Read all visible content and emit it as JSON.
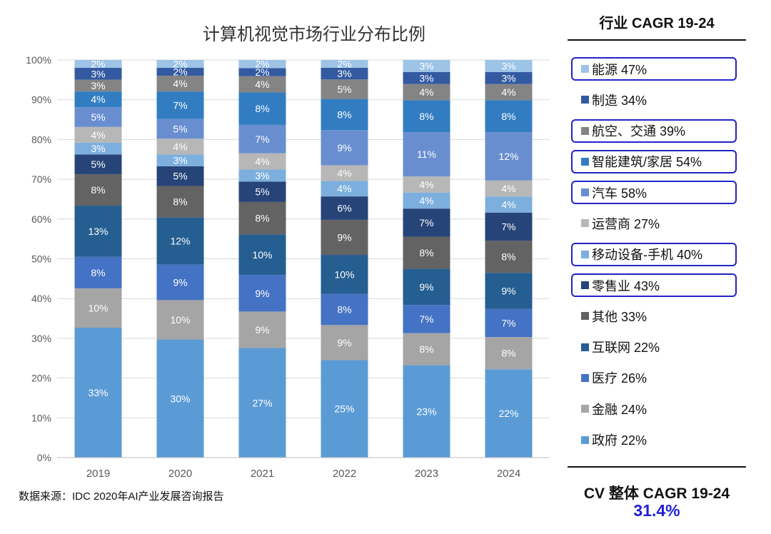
{
  "chart_data": {
    "type": "bar",
    "stacked": true,
    "title": "计算机视觉市场行业分布比例",
    "categories": [
      "2019",
      "2020",
      "2021",
      "2022",
      "2023",
      "2024"
    ],
    "ylim": [
      0,
      100
    ],
    "yticks": [
      "0%",
      "10%",
      "20%",
      "30%",
      "40%",
      "50%",
      "60%",
      "70%",
      "80%",
      "90%",
      "100%"
    ],
    "grid": true,
    "legend_position": "right",
    "series": [
      {
        "name": "政府",
        "color": "#5b9bd5",
        "values": [
          33,
          30,
          27,
          25,
          23,
          22
        ]
      },
      {
        "name": "金融",
        "color": "#a5a5a5",
        "values": [
          10,
          10,
          9,
          9,
          8,
          8
        ]
      },
      {
        "name": "医疗",
        "color": "#4472c4",
        "values": [
          8,
          9,
          9,
          8,
          7,
          7
        ]
      },
      {
        "name": "互联网",
        "color": "#255e91",
        "values": [
          13,
          12,
          10,
          10,
          9,
          9
        ]
      },
      {
        "name": "其他",
        "color": "#636363",
        "values": [
          8,
          8,
          8,
          9,
          8,
          8
        ]
      },
      {
        "name": "零售业",
        "color": "#264478",
        "values": [
          5,
          5,
          5,
          6,
          7,
          7
        ]
      },
      {
        "name": "移动设备-手机",
        "color": "#7cafdd",
        "values": [
          3,
          3,
          3,
          4,
          4,
          4
        ]
      },
      {
        "name": "运营商",
        "color": "#b7b7b7",
        "values": [
          4,
          4,
          4,
          4,
          4,
          4
        ]
      },
      {
        "name": "汽车",
        "color": "#698ed0",
        "values": [
          5,
          5,
          7,
          9,
          11,
          12
        ]
      },
      {
        "name": "智能建筑/家居",
        "color": "#327dc2",
        "values": [
          4,
          7,
          8,
          8,
          8,
          8
        ]
      },
      {
        "name": "航空、交通",
        "color": "#848484",
        "values": [
          3,
          4,
          4,
          5,
          4,
          4
        ]
      },
      {
        "name": "制造",
        "color": "#335aa1",
        "values": [
          3,
          2,
          2,
          3,
          3,
          3
        ]
      },
      {
        "name": "能源",
        "color": "#9dc3e6",
        "values": [
          2,
          2,
          2,
          2,
          3,
          3
        ]
      }
    ],
    "label_format": "{v}%"
  },
  "panel": {
    "header": "行业 CAGR 19-24",
    "legend": [
      {
        "label": "能源 47%",
        "color": "#9dc3e6",
        "highlighted": true
      },
      {
        "label": "制造 34%",
        "color": "#335aa1",
        "highlighted": false
      },
      {
        "label": "航空、交通 39%",
        "color": "#848484",
        "highlighted": true
      },
      {
        "label": "智能建筑/家居 54%",
        "color": "#327dc2",
        "highlighted": true
      },
      {
        "label": "汽车 58%",
        "color": "#698ed0",
        "highlighted": true
      },
      {
        "label": "运营商 27%",
        "color": "#b7b7b7",
        "highlighted": false
      },
      {
        "label": "移动设备-手机 40%",
        "color": "#7cafdd",
        "highlighted": true
      },
      {
        "label": "零售业 43%",
        "color": "#264478",
        "highlighted": true
      },
      {
        "label": "其他 33%",
        "color": "#636363",
        "highlighted": false
      },
      {
        "label": "互联网 22%",
        "color": "#255e91",
        "highlighted": false
      },
      {
        "label": "医疗 26%",
        "color": "#4472c4",
        "highlighted": false
      },
      {
        "label": "金融 24%",
        "color": "#a5a5a5",
        "highlighted": false
      },
      {
        "label": "政府 22%",
        "color": "#5b9bd5",
        "highlighted": false
      }
    ],
    "cv_label": "CV 整体 CAGR 19-24",
    "cv_value": "31.4%"
  },
  "source_note": "数据来源：IDC 2020年AI产业发展咨询报告"
}
